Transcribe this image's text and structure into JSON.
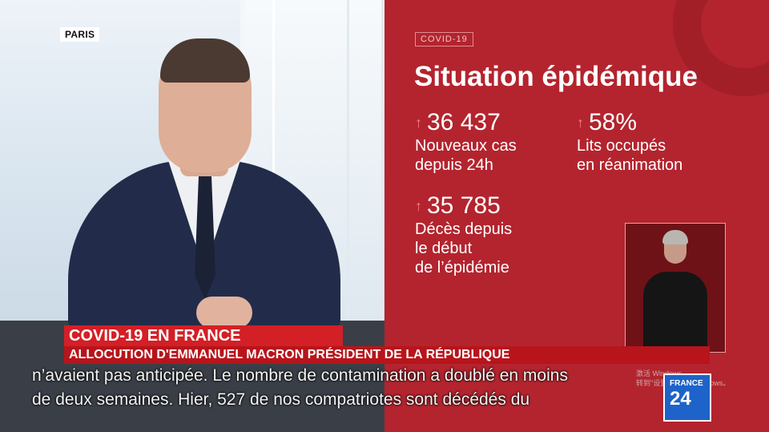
{
  "location_tag": "PARIS",
  "panel": {
    "tag": "COVID-19",
    "title": "Situation épidémique",
    "stats": [
      {
        "arrow": "↑",
        "value": "36 437",
        "label": "Nouveaux cas\ndepuis 24h"
      },
      {
        "arrow": "↑",
        "value": "58%",
        "label": "Lits occupés\nen réanimation"
      },
      {
        "arrow": "↑",
        "value": "35 785",
        "label": "Décès depuis\nle début\nde l’épidémie"
      }
    ]
  },
  "lower_third": {
    "headline": "COVID-19 EN FRANCE",
    "subline": "ALLOCUTION D'EMMANUEL MACRON PRÉSIDENT DE LA RÉPUBLIQUE"
  },
  "subtitles": [
    "n’avaient pas anticipée. Le nombre de contamination a doublé en moins",
    "de deux semaines. Hier, 527 de nos compatriotes sont décédés du"
  ],
  "logo": {
    "line1": "FRANCE",
    "line2": "24"
  },
  "watermark": "激活 Windows\n转到\"设置\"以激活 Windows。",
  "colors": {
    "panel_red": "#b3242e",
    "ticker_red": "#d31f26",
    "logo_blue": "#1e63c9"
  }
}
